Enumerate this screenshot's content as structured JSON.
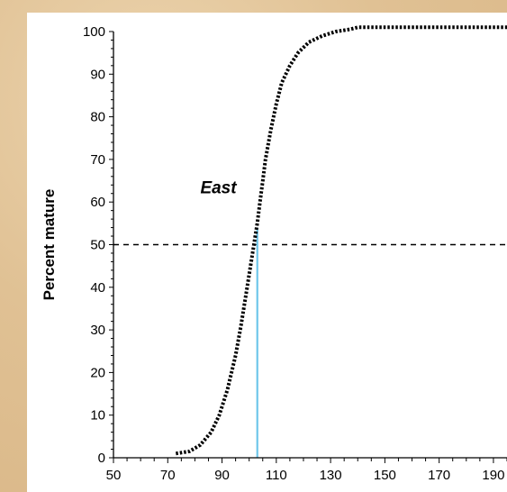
{
  "chart_data": {
    "type": "line",
    "title": "",
    "xlabel": "",
    "ylabel": "Percent mature",
    "xlim": [
      50,
      195
    ],
    "ylim": [
      0,
      100
    ],
    "x_ticks": [
      50,
      70,
      90,
      110,
      130,
      150,
      170,
      190
    ],
    "y_ticks": [
      0,
      10,
      20,
      30,
      40,
      50,
      60,
      70,
      80,
      90,
      100
    ],
    "grid": false,
    "annotation": "East",
    "reference_line_y": 50,
    "l50_x": 103,
    "series": [
      {
        "name": "",
        "style": "dotted",
        "x": [
          73,
          78,
          82,
          86,
          89,
          92,
          95,
          97,
          99,
          101,
          102,
          103,
          104,
          105,
          106,
          108,
          110,
          112,
          115,
          118,
          122,
          127,
          132,
          137,
          140,
          150,
          160,
          170,
          180,
          190,
          195
        ],
        "y": [
          1,
          1.5,
          3,
          6,
          10,
          16,
          24,
          31,
          39,
          47,
          51,
          55,
          60,
          65,
          70,
          77,
          83,
          88,
          92,
          95,
          97.5,
          99,
          100,
          100.5,
          101,
          101,
          101,
          101,
          101,
          101,
          101
        ]
      }
    ],
    "colors": {
      "curve": "#000000",
      "l50_line": "#6ec6ea",
      "reference_line": "#000000"
    }
  }
}
